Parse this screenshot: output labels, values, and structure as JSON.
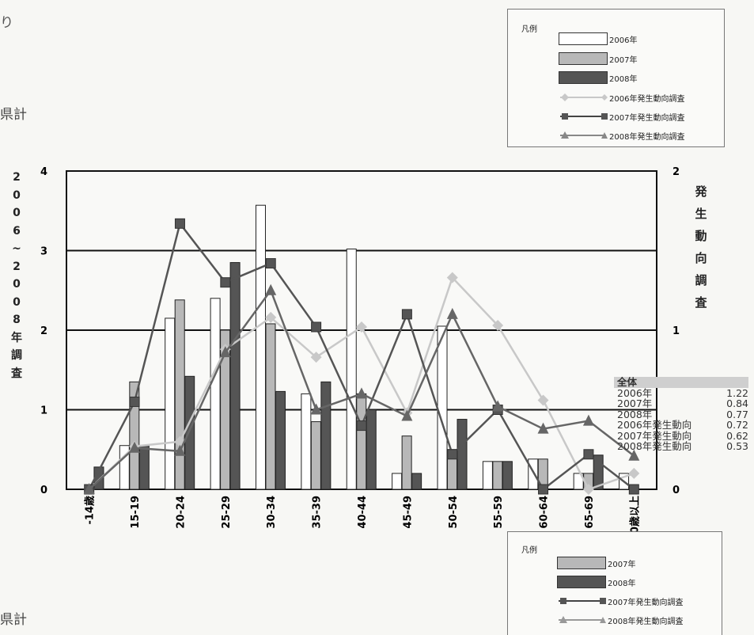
{
  "page": {
    "frag1": "り",
    "frag2": "県計",
    "frag3": "県計"
  },
  "legend_top": {
    "title": "凡例",
    "items": [
      "2006年",
      "2007年",
      "2008年",
      "2006年発生動向調査",
      "2007年発生動向調査",
      "2008年発生動向調査"
    ]
  },
  "legend_bottom": {
    "title": "凡例",
    "items": [
      "2007年",
      "2008年",
      "2007年発生動向調査",
      "2008年発生動向調査"
    ]
  },
  "stats": {
    "header": "全体",
    "rows": [
      {
        "label": "2006年",
        "value": "1.22"
      },
      {
        "label": "2007年",
        "value": "0.84"
      },
      {
        "label": "2008年",
        "value": "0.77"
      },
      {
        "label": "2006年発生動向",
        "value": "0.72"
      },
      {
        "label": "2007年発生動向",
        "value": "0.62"
      },
      {
        "label": "2008年発生動向",
        "value": "0.53"
      }
    ]
  },
  "colors": {
    "bar2006": "#ffffff",
    "bar2007": "#b8b8b8",
    "bar2008": "#555555",
    "line2006": "#c8c8c8",
    "line2007": "#555555",
    "line2008": "#666666"
  },
  "chart_data": {
    "type": "bar",
    "categories": [
      "-14歳",
      "15-19",
      "20-24",
      "25-29",
      "30-34",
      "35-39",
      "40-44",
      "45-49",
      "50-54",
      "55-59",
      "60-64",
      "65-69",
      "70歳以上"
    ],
    "ylabel": "2006~2008年調査",
    "y2label": "発生動向調査",
    "ylim": [
      0,
      4
    ],
    "y2lim": [
      0,
      2
    ],
    "yticks": [
      "0",
      "1",
      "2",
      "3",
      "4"
    ],
    "y2ticks": [
      "0",
      "1",
      "2"
    ],
    "grid": true,
    "series": [
      {
        "name": "2006年",
        "kind": "bar",
        "axis": "left",
        "values": [
          0,
          0.55,
          2.15,
          2.4,
          3.57,
          1.2,
          3.02,
          0.2,
          2.05,
          0.35,
          0.38,
          0.2,
          0.2
        ]
      },
      {
        "name": "2007年",
        "kind": "bar",
        "axis": "left",
        "values": [
          0,
          1.35,
          2.38,
          2.0,
          2.08,
          0.85,
          1.2,
          0.67,
          0.5,
          0.35,
          0.38,
          0.2,
          0
        ]
      },
      {
        "name": "2008年",
        "kind": "bar",
        "axis": "left",
        "values": [
          0.28,
          0.55,
          1.42,
          2.85,
          1.23,
          1.35,
          1.0,
          0.2,
          0.88,
          0.35,
          0,
          0.43,
          0
        ]
      },
      {
        "name": "2006年発生動向調査",
        "kind": "line",
        "axis": "right",
        "marker": "diamond",
        "values": [
          0,
          0.27,
          0.3,
          0.88,
          1.08,
          0.83,
          1.02,
          0.48,
          1.33,
          1.03,
          0.56,
          0,
          0.1
        ]
      },
      {
        "name": "2007年発生動向調査",
        "kind": "line",
        "axis": "right",
        "marker": "square",
        "values": [
          0,
          0.55,
          1.67,
          1.3,
          1.42,
          1.02,
          0.4,
          1.1,
          0.22,
          0.5,
          0,
          0.22,
          0
        ]
      },
      {
        "name": "2008年発生動向調査",
        "kind": "line",
        "axis": "right",
        "marker": "triangle",
        "values": [
          0,
          0.26,
          0.24,
          0.86,
          1.25,
          0.5,
          0.6,
          0.46,
          1.1,
          0.52,
          0.38,
          0.43,
          0.21
        ]
      }
    ]
  }
}
